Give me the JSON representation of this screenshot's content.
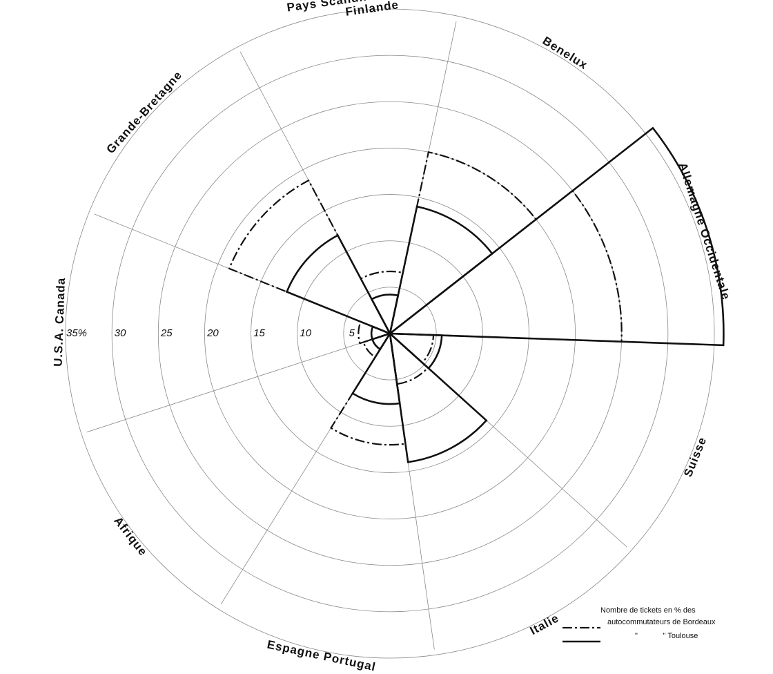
{
  "chart_data": {
    "type": "polar_area",
    "categories": [
      [
        "Allemagne Occidentale"
      ],
      [
        "Benelux"
      ],
      [
        "Pays Scandinaves",
        "Finlande"
      ],
      [
        "Grande-Bretagne"
      ],
      [
        "U.S.A.  Canada"
      ],
      [
        "Afrique"
      ],
      [
        "Espagne  Portugal"
      ],
      [
        "Italie"
      ],
      [
        "Suisse"
      ]
    ],
    "series": [
      {
        "name": "autocommutateurs de Bordeaux",
        "color": "#111111",
        "line": "dashdot",
        "values": [
          25,
          20,
          6.7,
          18.7,
          3.4,
          3,
          12,
          5.5,
          4.7
        ]
      },
      {
        "name": "\"            \" Toulouse",
        "color": "#111111",
        "line": "solid",
        "values": [
          36,
          14,
          4.2,
          12,
          2,
          2,
          7.6,
          14,
          5.6
        ]
      }
    ],
    "legend_title": "Nombre de tickets en % des",
    "rlim": [
      0,
      35
    ],
    "rticks": [
      5,
      10,
      15,
      20,
      25,
      30,
      {
        "value": 35,
        "label": "35%"
      }
    ],
    "grid": true
  }
}
